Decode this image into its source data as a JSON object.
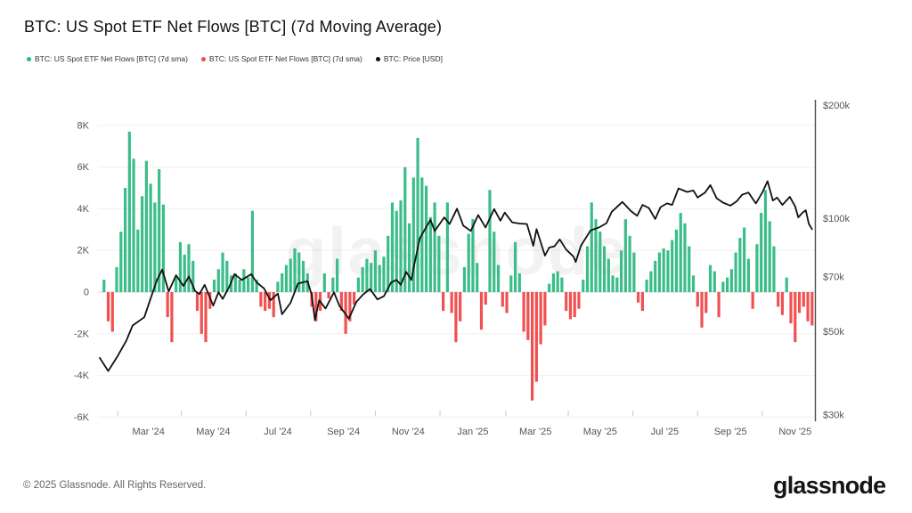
{
  "title": "BTC: US Spot ETF Net Flows [BTC] (7d Moving Average)",
  "watermark": "glassnode",
  "legend": [
    {
      "label": "BTC: US Spot ETF Net Flows [BTC] (7d sma)",
      "color": "#2eb980"
    },
    {
      "label": "BTC: US Spot ETF Net Flows [BTC] (7d sma)",
      "color": "#ef4c4c"
    },
    {
      "label": "BTC: Price [USD]",
      "color": "#111111"
    }
  ],
  "footer": {
    "copyright": "© 2025 Glassnode. All Rights Reserved.",
    "logo_text": "glassnode"
  },
  "chart_data": {
    "type": "bar+line",
    "title": "BTC: US Spot ETF Net Flows [BTC] (7d Moving Average)",
    "grid": true,
    "x_axis": {
      "start_date": "2024-01-15",
      "end_date": "2025-11-18",
      "labels": [
        "Mar '24",
        "May '24",
        "Jul '24",
        "Sep '24",
        "Nov '24",
        "Jan '25",
        "Mar '25",
        "May '25",
        "Jul '25",
        "Sep '25",
        "Nov '25"
      ],
      "dates": [
        "2024-03-01",
        "2024-05-01",
        "2024-07-01",
        "2024-09-01",
        "2024-11-01",
        "2025-01-01",
        "2025-03-01",
        "2025-05-01",
        "2025-07-01",
        "2025-09-01",
        "2025-11-01"
      ]
    },
    "left_axis": {
      "title": "Net Flows (BTC)",
      "labels": [
        "8K",
        "6K",
        "4K",
        "2K",
        "0",
        "-2K",
        "-4K",
        "-6K"
      ],
      "values": [
        8000,
        6000,
        4000,
        2000,
        0,
        -2000,
        -4000,
        -6000
      ],
      "range": [
        -6100,
        9100
      ]
    },
    "right_axis": {
      "title": "Price (USD)",
      "scale": "log",
      "labels": [
        "$200k",
        "$100k",
        "$70k",
        "$50k",
        "$30k"
      ],
      "values": [
        200000,
        100000,
        70000,
        50000,
        30000
      ],
      "range": [
        29000,
        207000
      ]
    },
    "flows": {
      "name": "BTC: US Spot ETF Net Flows [BTC] (7d sma)",
      "unit": "BTC",
      "positive_color": "#3bbd89",
      "negative_color": "#f15050",
      "start_date": "2024-01-15",
      "step_days": 4,
      "values": [
        0,
        600,
        -1400,
        -1900,
        1200,
        2900,
        5000,
        7700,
        6400,
        3000,
        4600,
        6300,
        5200,
        4300,
        5900,
        4200,
        -1200,
        -2400,
        700,
        2400,
        1800,
        2300,
        1500,
        -900,
        -2000,
        -2400,
        -800,
        600,
        1100,
        1900,
        1500,
        800,
        900,
        600,
        1100,
        700,
        3900,
        600,
        -700,
        -900,
        -800,
        -1200,
        500,
        900,
        1300,
        1600,
        2100,
        1900,
        1500,
        900,
        -700,
        -1400,
        -900,
        900,
        -300,
        700,
        1600,
        -900,
        -2000,
        -1400,
        -600,
        700,
        1200,
        1600,
        1400,
        2000,
        1300,
        1700,
        2700,
        4300,
        3900,
        4400,
        6000,
        3300,
        5500,
        7400,
        5500,
        5100,
        3600,
        4300,
        2700,
        -900,
        4300,
        -1000,
        -2400,
        -1400,
        1200,
        2800,
        3500,
        1400,
        -1800,
        -600,
        4900,
        2900,
        1300,
        -700,
        -1000,
        800,
        2400,
        900,
        -1900,
        -2300,
        -5200,
        -4300,
        -2500,
        -1600,
        400,
        900,
        1000,
        700,
        -900,
        -1300,
        -1200,
        -800,
        600,
        2200,
        4300,
        3500,
        2900,
        2200,
        1600,
        800,
        700,
        2000,
        3500,
        2700,
        1900,
        -500,
        -900,
        600,
        1000,
        1500,
        1900,
        2100,
        2000,
        2500,
        3000,
        3800,
        3300,
        2200,
        800,
        -700,
        -1700,
        -1000,
        1300,
        1000,
        -1200,
        500,
        700,
        1100,
        1900,
        2600,
        3100,
        1600,
        -800,
        2300,
        3800,
        4900,
        3400,
        2200,
        -700,
        -1100,
        700,
        -1500,
        -2400,
        -1000,
        -700,
        -1400,
        -1600
      ]
    },
    "price": {
      "name": "BTC: Price [USD]",
      "unit": "USD",
      "color": "#111111",
      "points": [
        [
          "2024-01-15",
          42500
        ],
        [
          "2024-01-23",
          39200
        ],
        [
          "2024-02-01",
          43000
        ],
        [
          "2024-02-09",
          47200
        ],
        [
          "2024-02-15",
          51800
        ],
        [
          "2024-02-26",
          54500
        ],
        [
          "2024-03-05",
          63500
        ],
        [
          "2024-03-09",
          68500
        ],
        [
          "2024-03-14",
          73000
        ],
        [
          "2024-03-20",
          63800
        ],
        [
          "2024-03-27",
          70500
        ],
        [
          "2024-04-03",
          66000
        ],
        [
          "2024-04-08",
          70000
        ],
        [
          "2024-04-14",
          64000
        ],
        [
          "2024-04-18",
          62800
        ],
        [
          "2024-04-23",
          66500
        ],
        [
          "2024-05-01",
          58500
        ],
        [
          "2024-05-06",
          63500
        ],
        [
          "2024-05-10",
          61000
        ],
        [
          "2024-05-16",
          65500
        ],
        [
          "2024-05-21",
          71000
        ],
        [
          "2024-05-28",
          68500
        ],
        [
          "2024-06-06",
          71000
        ],
        [
          "2024-06-11",
          67500
        ],
        [
          "2024-06-18",
          65000
        ],
        [
          "2024-06-24",
          60500
        ],
        [
          "2024-07-01",
          63000
        ],
        [
          "2024-07-05",
          55500
        ],
        [
          "2024-07-13",
          59500
        ],
        [
          "2024-07-20",
          67000
        ],
        [
          "2024-07-29",
          68000
        ],
        [
          "2024-08-02",
          62500
        ],
        [
          "2024-08-05",
          53500
        ],
        [
          "2024-08-09",
          60500
        ],
        [
          "2024-08-15",
          57500
        ],
        [
          "2024-08-23",
          63500
        ],
        [
          "2024-08-28",
          58500
        ],
        [
          "2024-09-06",
          54000
        ],
        [
          "2024-09-13",
          59800
        ],
        [
          "2024-09-19",
          62500
        ],
        [
          "2024-09-26",
          64800
        ],
        [
          "2024-10-03",
          60800
        ],
        [
          "2024-10-09",
          62000
        ],
        [
          "2024-10-16",
          67500
        ],
        [
          "2024-10-21",
          68500
        ],
        [
          "2024-10-25",
          66500
        ],
        [
          "2024-10-30",
          72000
        ],
        [
          "2024-11-04",
          68500
        ],
        [
          "2024-11-07",
          76000
        ],
        [
          "2024-11-12",
          88500
        ],
        [
          "2024-11-22",
          99000
        ],
        [
          "2024-11-26",
          92500
        ],
        [
          "2024-12-05",
          100500
        ],
        [
          "2024-12-10",
          96500
        ],
        [
          "2024-12-17",
          106000
        ],
        [
          "2024-12-23",
          95500
        ],
        [
          "2024-12-30",
          92500
        ],
        [
          "2025-01-06",
          102000
        ],
        [
          "2025-01-13",
          94500
        ],
        [
          "2025-01-21",
          105800
        ],
        [
          "2025-01-27",
          98500
        ],
        [
          "2025-01-31",
          103500
        ],
        [
          "2025-02-07",
          97500
        ],
        [
          "2025-02-14",
          96800
        ],
        [
          "2025-02-21",
          96500
        ],
        [
          "2025-02-27",
          84500
        ],
        [
          "2025-03-02",
          93500
        ],
        [
          "2025-03-10",
          79500
        ],
        [
          "2025-03-14",
          83500
        ],
        [
          "2025-03-19",
          84200
        ],
        [
          "2025-03-24",
          87800
        ],
        [
          "2025-03-30",
          82500
        ],
        [
          "2025-04-06",
          79000
        ],
        [
          "2025-04-08",
          76500
        ],
        [
          "2025-04-13",
          84500
        ],
        [
          "2025-04-22",
          92800
        ],
        [
          "2025-04-30",
          94500
        ],
        [
          "2025-05-07",
          97000
        ],
        [
          "2025-05-12",
          104000
        ],
        [
          "2025-05-22",
          110500
        ],
        [
          "2025-05-30",
          104500
        ],
        [
          "2025-06-05",
          101500
        ],
        [
          "2025-06-10",
          108500
        ],
        [
          "2025-06-16",
          106500
        ],
        [
          "2025-06-22",
          99500
        ],
        [
          "2025-06-27",
          107000
        ],
        [
          "2025-07-03",
          109500
        ],
        [
          "2025-07-08",
          108500
        ],
        [
          "2025-07-14",
          120000
        ],
        [
          "2025-07-22",
          117500
        ],
        [
          "2025-07-28",
          118500
        ],
        [
          "2025-08-01",
          113500
        ],
        [
          "2025-08-08",
          117000
        ],
        [
          "2025-08-13",
          122500
        ],
        [
          "2025-08-19",
          113000
        ],
        [
          "2025-08-25",
          110000
        ],
        [
          "2025-09-01",
          108000
        ],
        [
          "2025-09-07",
          111000
        ],
        [
          "2025-09-12",
          115500
        ],
        [
          "2025-09-18",
          117000
        ],
        [
          "2025-09-25",
          109500
        ],
        [
          "2025-10-01",
          117000
        ],
        [
          "2025-10-06",
          125500
        ],
        [
          "2025-10-11",
          111500
        ],
        [
          "2025-10-15",
          113500
        ],
        [
          "2025-10-20",
          108500
        ],
        [
          "2025-10-27",
          114000
        ],
        [
          "2025-11-01",
          107500
        ],
        [
          "2025-11-04",
          100500
        ],
        [
          "2025-11-08",
          103500
        ],
        [
          "2025-11-11",
          105000
        ],
        [
          "2025-11-14",
          96500
        ],
        [
          "2025-11-17",
          93500
        ]
      ]
    }
  }
}
